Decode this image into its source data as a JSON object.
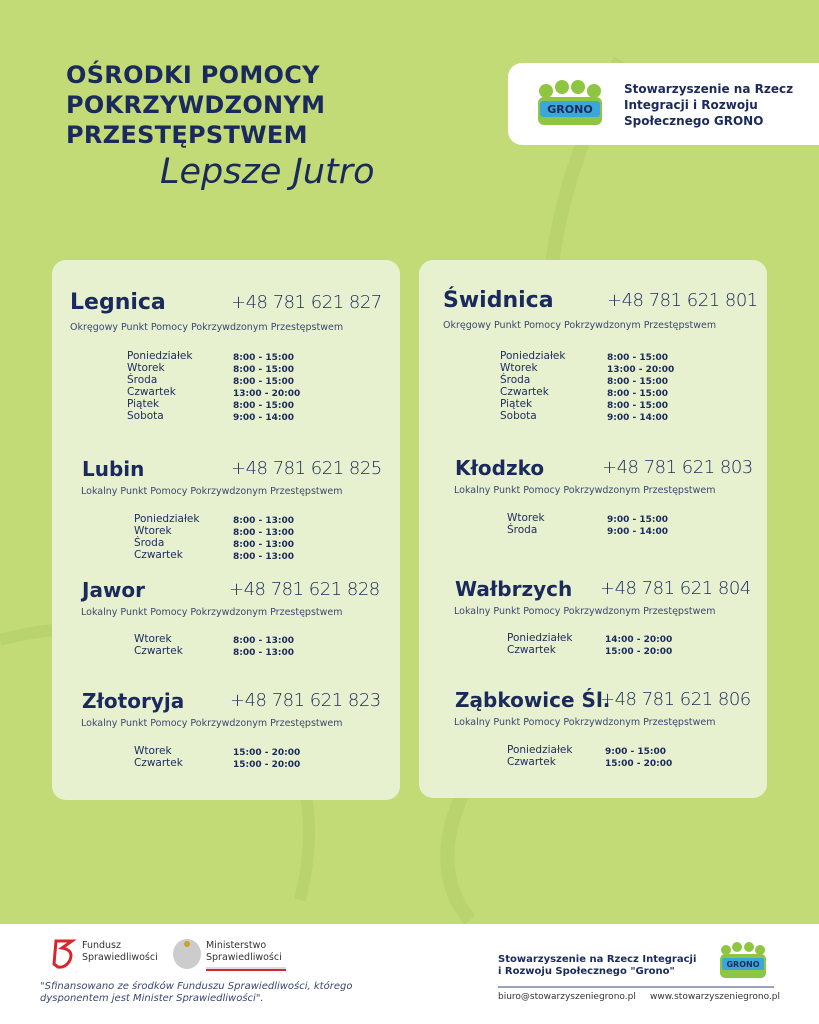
{
  "header": {
    "title_lines": [
      "OŚRODKI POMOCY",
      "POKRZYWDZONYM",
      "PRZESTĘPSTWEM"
    ],
    "subtitle": "Lepsze Jutro",
    "org_lines": [
      "Stowarzyszenie na Rzecz",
      "Integracji i Rozwoju",
      "Społecznego GRONO"
    ],
    "logo_text": "GRONO"
  },
  "colors": {
    "background": "#c2db76",
    "card": "#e9f2d5",
    "navy": "#1b2a5c"
  },
  "left": [
    {
      "name": "Legnica",
      "phone": "+48 781 621 827",
      "desc": "Okręgowy Punkt Pomocy Pokrzywdzonym Przestępstwem",
      "days": [
        "Poniedziałek",
        "Wtorek",
        "Środa",
        "Czwartek",
        "Piątek",
        "Sobota"
      ],
      "hours": [
        "8:00 - 15:00",
        "8:00 - 15:00",
        "8:00 - 15:00",
        "13:00 - 20:00",
        "8:00 - 15:00",
        "9:00 - 14:00"
      ]
    },
    {
      "name": "Lubin",
      "phone": "+48 781 621 825",
      "desc": "Lokalny Punkt Pomocy Pokrzywdzonym Przestępstwem",
      "days": [
        "Poniedziałek",
        "Wtorek",
        "Środa",
        "Czwartek"
      ],
      "hours": [
        "8:00 - 13:00",
        "8:00 - 13:00",
        "8:00 - 13:00",
        "8:00 - 13:00"
      ]
    },
    {
      "name": "Jawor",
      "phone": "+48 781 621 828",
      "desc": "Lokalny Punkt Pomocy Pokrzywdzonym Przestępstwem",
      "days": [
        "Wtorek",
        "Czwartek"
      ],
      "hours": [
        "8:00 - 13:00",
        "8:00 - 13:00"
      ]
    },
    {
      "name": "Złotoryja",
      "phone": "+48 781 621 823",
      "desc": "Lokalny Punkt Pomocy Pokrzywdzonym Przestępstwem",
      "days": [
        "Wtorek",
        "Czwartek"
      ],
      "hours": [
        "15:00 - 20:00",
        "15:00 - 20:00"
      ]
    }
  ],
  "right": [
    {
      "name": "Świdnica",
      "phone": "+48 781 621 801",
      "desc": "Okręgowy Punkt Pomocy Pokrzywdzonym Przestępstwem",
      "days": [
        "Poniedziałek",
        "Wtorek",
        "Środa",
        "Czwartek",
        "Piątek",
        "Sobota"
      ],
      "hours": [
        "8:00 - 15:00",
        "13:00 - 20:00",
        "8:00 - 15:00",
        "8:00 - 15:00",
        "8:00 - 15:00",
        "9:00 - 14:00"
      ]
    },
    {
      "name": "Kłodzko",
      "phone": "+48 781 621 803",
      "desc": "Lokalny Punkt Pomocy Pokrzywdzonym Przestępstwem",
      "days": [
        "Wtorek",
        "Środa"
      ],
      "hours": [
        "9:00 - 15:00",
        "9:00 - 14:00"
      ]
    },
    {
      "name": "Wałbrzych",
      "phone": "+48 781 621 804",
      "desc": "Lokalny Punkt Pomocy Pokrzywdzonym Przestępstwem",
      "days": [
        "Poniedziałek",
        "Czwartek"
      ],
      "hours": [
        "14:00 - 20:00",
        "15:00 - 20:00"
      ]
    },
    {
      "name": "Ząbkowice Śl.",
      "phone": "+48 781 621 806",
      "desc": "Lokalny Punkt Pomocy Pokrzywdzonym Przestępstwem",
      "days": [
        "Poniedziałek",
        "Czwartek"
      ],
      "hours": [
        "9:00 - 15:00",
        "15:00 - 20:00"
      ]
    }
  ],
  "footer": {
    "fundusz_lines": [
      "Fundusz",
      "Sprawiedliwości"
    ],
    "ministerstwo_lines": [
      "Ministerstwo",
      "Sprawiedliwości"
    ],
    "note_lines": [
      "\"Sfinansowano ze środków Funduszu Sprawiedliwości, którego",
      "dysponentem jest Minister Sprawiedliwości\"."
    ],
    "org_lines": [
      "Stowarzyszenie na Rzecz Integracji",
      "i Rozwoju Społecznego \"Grono\""
    ],
    "email": "biuro@stowarzyszeniegrono.pl",
    "website": "www.stowarzyszeniegrono.pl",
    "logo_text": "GRONO"
  }
}
